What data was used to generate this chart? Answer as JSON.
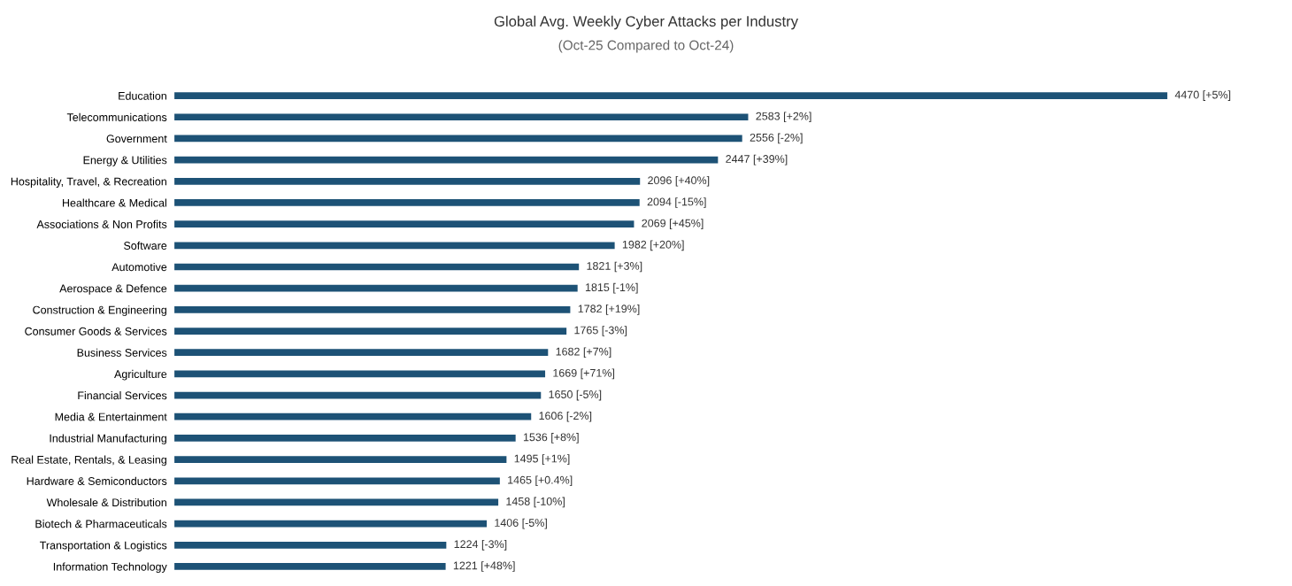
{
  "chart_data": {
    "type": "bar",
    "orientation": "horizontal",
    "title": "Global Avg. Weekly Cyber Attacks per Industry",
    "subtitle": "(Oct-25 Compared to Oct-24)",
    "categories": [
      "Education",
      "Telecommunications",
      "Government",
      "Energy & Utilities",
      "Hospitality, Travel, & Recreation",
      "Healthcare & Medical",
      "Associations & Non Profits",
      "Software",
      "Automotive",
      "Aerospace & Defence",
      "Construction & Engineering",
      "Consumer Goods & Services",
      "Business Services",
      "Agriculture",
      "Financial Services",
      "Media & Entertainment",
      "Industrial Manufacturing",
      "Real Estate, Rentals, & Leasing",
      "Hardware & Semiconductors",
      "Wholesale & Distribution",
      "Biotech & Pharmaceuticals",
      "Transportation & Logistics",
      "Information Technology"
    ],
    "values": [
      4470,
      2583,
      2556,
      2447,
      2096,
      2094,
      2069,
      1982,
      1821,
      1815,
      1782,
      1765,
      1682,
      1669,
      1650,
      1606,
      1536,
      1495,
      1465,
      1458,
      1406,
      1224,
      1221
    ],
    "value_labels": [
      "4470 [+5%]",
      "2583 [+2%]",
      "2556 [-2%]",
      "2447 [+39%]",
      "2096 [+40%]",
      "2094 [-15%]",
      "2069 [+45%]",
      "1982 [+20%]",
      "1821 [+3%]",
      "1815 [-1%]",
      "1782 [+19%]",
      "1765 [-3%]",
      "1682 [+7%]",
      "1669 [+71%]",
      "1650 [-5%]",
      "1606 [-2%]",
      "1536 [+8%]",
      "1495 [+1%]",
      "1465 [+0.4%]",
      "1458 [-10%]",
      "1406 [-5%]",
      "1224 [-3%]",
      "1221 [+48%]"
    ],
    "color": "#1d5276",
    "tick_labels": "y",
    "grid": false
  }
}
